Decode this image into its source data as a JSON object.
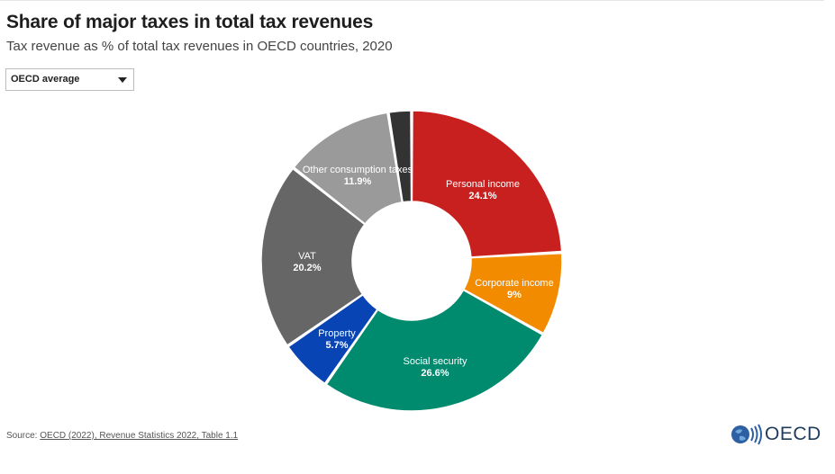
{
  "title": "Share of major taxes in total tax revenues",
  "subtitle": "Tax revenue as % of total tax revenues in OECD countries, 2020",
  "dropdown": {
    "selected": "OECD average"
  },
  "source": {
    "prefix": "Source: ",
    "link_text": "OECD (2022), Revenue Statistics 2022, Table 1.1"
  },
  "logo": {
    "text": "OECD"
  },
  "chart_data": {
    "type": "pie",
    "variant": "donut",
    "start_angle_deg": 0,
    "direction": "clockwise",
    "slices": [
      {
        "name": "Personal income",
        "value": 24.1,
        "label": "24.1%",
        "color": "#c8201e",
        "labeled": true
      },
      {
        "name": "Corporate income",
        "value": 9,
        "label": "9%",
        "color": "#f28b00",
        "labeled": true
      },
      {
        "name": "Social security",
        "value": 26.6,
        "label": "26.6%",
        "color": "#008a6e",
        "labeled": true
      },
      {
        "name": "Property",
        "value": 5.7,
        "label": "5.7%",
        "color": "#0844b4",
        "labeled": true
      },
      {
        "name": "VAT",
        "value": 20.2,
        "label": "20.2%",
        "color": "#666666",
        "labeled": true
      },
      {
        "name": "Other consumption taxes",
        "value": 11.9,
        "label": "11.9%",
        "color": "#9a9a9a",
        "labeled": true
      },
      {
        "name": "",
        "value": 2.5,
        "label": "",
        "color": "#333333",
        "labeled": false
      }
    ]
  }
}
